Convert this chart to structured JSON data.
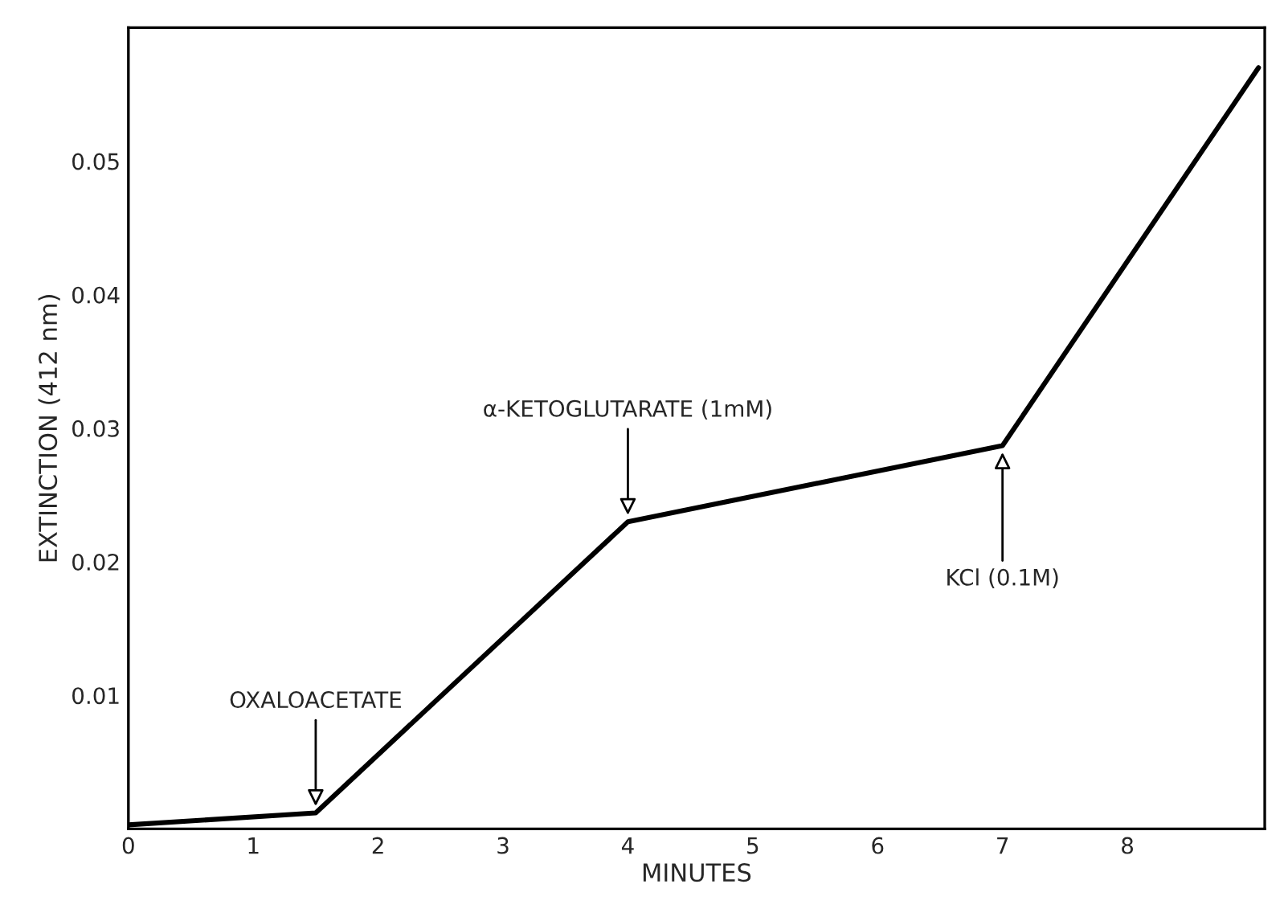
{
  "chart_data": {
    "type": "line",
    "xlabel": "MINUTES",
    "ylabel": "EXTINCTION (412 nm)",
    "x": [
      0,
      1.5,
      4,
      7,
      9.05
    ],
    "series": [
      {
        "color": "#000000",
        "values": [
          0.0003,
          0.0012,
          0.023,
          0.0287,
          0.057
        ]
      }
    ],
    "xlim": [
      0,
      9.1
    ],
    "ylim": [
      0,
      0.06
    ],
    "xticks": [
      0,
      1,
      2,
      3,
      4,
      5,
      6,
      7,
      8
    ],
    "yticks": [
      0.01,
      0.02,
      0.03,
      0.04,
      0.05
    ],
    "grid": false,
    "legend": false,
    "marker": "none",
    "line_style": "solid",
    "annotations": [
      {
        "text": "OXALOACETATE",
        "x": 1.5,
        "y": 0.0012
      },
      {
        "text": "α-KETOGLUTARATE (1mM)",
        "x": 4,
        "y": 0.023
      },
      {
        "text": "KCl (0.1M)",
        "x": 7,
        "y": 0.0287
      }
    ]
  }
}
